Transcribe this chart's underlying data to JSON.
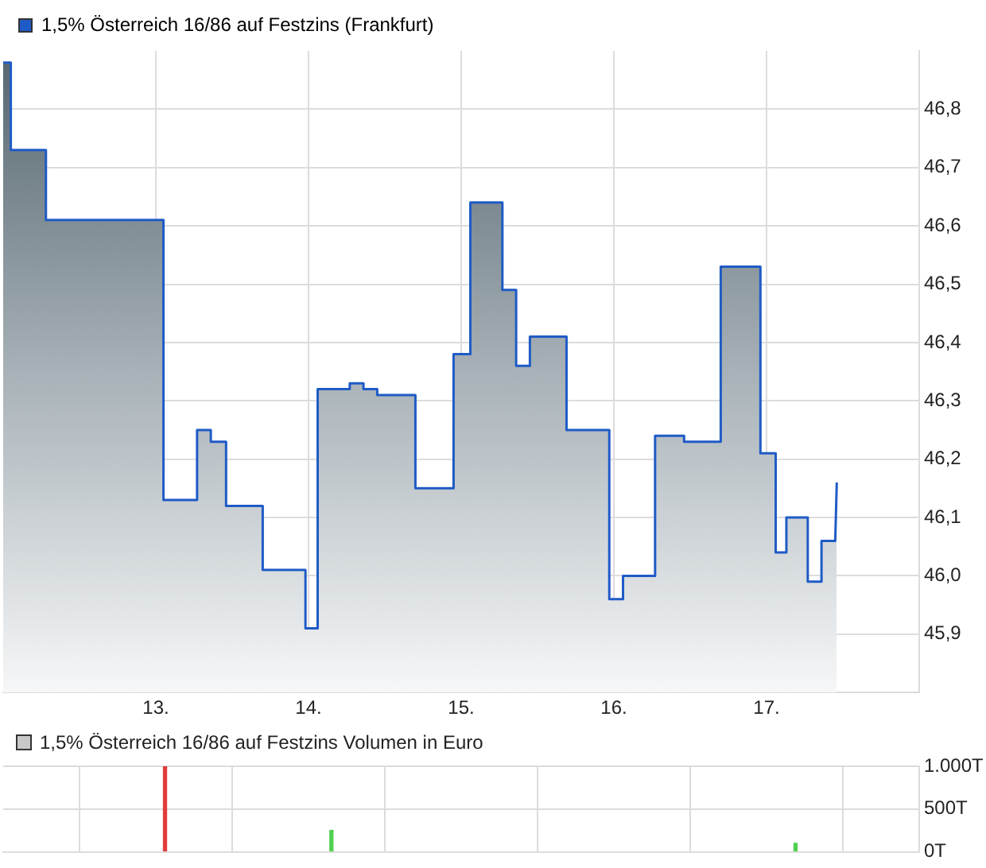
{
  "chart_data": [
    {
      "type": "area",
      "legend": "top left",
      "grid": true,
      "marker": "none",
      "xlim": [
        12,
        18
      ],
      "xticks": [
        {
          "value": 13,
          "label": "13."
        },
        {
          "value": 14,
          "label": "14."
        },
        {
          "value": 15,
          "label": "15."
        },
        {
          "value": 16,
          "label": "16."
        },
        {
          "value": 17,
          "label": "17."
        }
      ],
      "ylim": [
        45.8,
        46.9
      ],
      "yticks": [
        {
          "value": 45.9,
          "label": "45,9"
        },
        {
          "value": 46.0,
          "label": "46,0"
        },
        {
          "value": 46.1,
          "label": "46,1"
        },
        {
          "value": 46.2,
          "label": "46,2"
        },
        {
          "value": 46.3,
          "label": "46,3"
        },
        {
          "value": 46.4,
          "label": "46,4"
        },
        {
          "value": 46.5,
          "label": "46,5"
        },
        {
          "value": 46.6,
          "label": "46,6"
        },
        {
          "value": 46.7,
          "label": "46,7"
        },
        {
          "value": 46.8,
          "label": "46,8"
        }
      ],
      "series": [
        {
          "name": "1,5% Österreich 16/86 auf Festzins (Frankfurt)",
          "color": "#1f5bc6",
          "x": [
            12.0,
            12.05,
            12.05,
            12.28,
            12.28,
            13.05,
            13.05,
            13.27,
            13.27,
            13.36,
            13.36,
            13.46,
            13.46,
            13.7,
            13.7,
            13.98,
            13.98,
            14.06,
            14.06,
            14.27,
            14.27,
            14.36,
            14.36,
            14.45,
            14.45,
            14.7,
            14.7,
            14.95,
            14.95,
            15.06,
            15.06,
            15.27,
            15.27,
            15.36,
            15.36,
            15.45,
            15.45,
            15.69,
            15.69,
            15.97,
            15.97,
            16.06,
            16.06,
            16.27,
            16.27,
            16.46,
            16.46,
            16.7,
            16.7,
            16.96,
            16.96,
            17.06,
            17.06,
            17.13,
            17.13,
            17.27,
            17.27,
            17.36,
            17.36,
            17.45,
            17.46
          ],
          "values": [
            46.88,
            46.88,
            46.73,
            46.73,
            46.61,
            46.61,
            46.13,
            46.13,
            46.25,
            46.25,
            46.23,
            46.23,
            46.12,
            46.12,
            46.01,
            46.01,
            45.91,
            45.91,
            46.32,
            46.32,
            46.33,
            46.33,
            46.32,
            46.32,
            46.31,
            46.31,
            46.15,
            46.15,
            46.38,
            46.38,
            46.64,
            46.64,
            46.49,
            46.49,
            46.36,
            46.36,
            46.41,
            46.41,
            46.25,
            46.25,
            45.96,
            45.96,
            46.0,
            46.0,
            46.24,
            46.24,
            46.23,
            46.23,
            46.53,
            46.53,
            46.21,
            46.21,
            46.04,
            46.04,
            46.1,
            46.1,
            45.99,
            45.99,
            46.06,
            46.06,
            46.16
          ]
        }
      ]
    },
    {
      "type": "bar",
      "legend": "top left",
      "grid": true,
      "tick_labels": "y",
      "xlim": [
        12,
        18
      ],
      "xticks": [
        {
          "value": 13,
          "label": null
        },
        {
          "value": 14,
          "label": null
        },
        {
          "value": 15,
          "label": null
        },
        {
          "value": 16,
          "label": null
        },
        {
          "value": 17,
          "label": null
        }
      ],
      "ylim": [
        0,
        1000
      ],
      "yticks": [
        {
          "value": 0,
          "label": "0T"
        },
        {
          "value": 500,
          "label": "500T"
        },
        {
          "value": 1000,
          "label": "1.000T"
        }
      ],
      "series": [
        {
          "name": "1,5% Österreich 16/86 auf Festzins Volumen in Euro",
          "color": "#c8c8c8",
          "x": [
            13.06,
            14.15,
            17.19
          ],
          "values": [
            1000,
            250,
            100
          ],
          "colors": [
            "#e03c3c",
            "#50d050",
            "#50d050"
          ]
        }
      ]
    }
  ]
}
